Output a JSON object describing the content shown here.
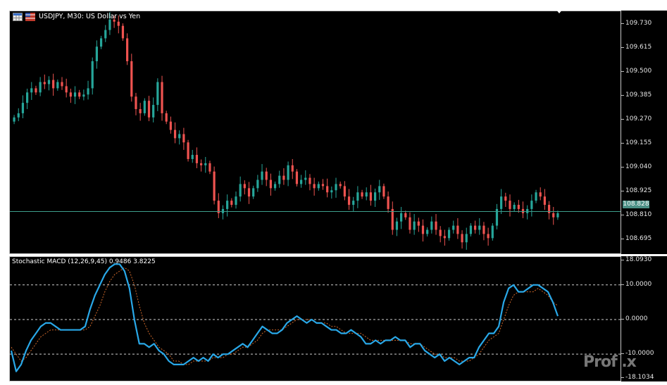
{
  "chart": {
    "title": "USDJPY, M30:  US Dollar vs Yen",
    "current_price": "108.828",
    "price_ticks": [
      "109.730",
      "109.615",
      "109.500",
      "109.385",
      "109.270",
      "109.155",
      "109.040",
      "108.925",
      "108.810",
      "108.695"
    ],
    "colors": {
      "bull": "#26a69a",
      "bear": "#ef5350",
      "background": "#000000",
      "price_line": "#3d9e8c"
    },
    "icons": [
      "table-icon",
      "flag-icon"
    ]
  },
  "indicator": {
    "title": "Stochastic MACD (12,26,9,45) 0.9486 3.8225",
    "ticks": [
      "18.0930",
      "10.0000",
      "0.0000",
      "-10.0000",
      "-18.1034"
    ],
    "levels": [
      10,
      0,
      -10
    ],
    "colors": {
      "main": "#29a8e8",
      "signal": "#d0682a",
      "level": "#cfcfcf"
    }
  },
  "watermark": "Prof .x",
  "chart_data": [
    {
      "type": "candlestick",
      "title": "USDJPY, M30:  US Dollar vs Yen",
      "ylim": [
        108.62,
        109.79
      ],
      "current_price": 108.828,
      "close": [
        109.28,
        109.3,
        109.35,
        109.4,
        109.42,
        109.4,
        109.45,
        109.44,
        109.46,
        109.42,
        109.45,
        109.43,
        109.4,
        109.38,
        109.4,
        109.38,
        109.39,
        109.42,
        109.55,
        109.62,
        109.66,
        109.7,
        109.75,
        109.74,
        109.72,
        109.66,
        109.55,
        109.38,
        109.32,
        109.3,
        109.36,
        109.28,
        109.34,
        109.45,
        109.3,
        109.26,
        109.22,
        109.18,
        109.2,
        109.16,
        109.08,
        109.1,
        109.06,
        109.05,
        109.06,
        109.02,
        108.88,
        108.82,
        108.84,
        108.88,
        108.86,
        108.9,
        108.96,
        108.94,
        108.9,
        108.94,
        108.98,
        109.02,
        108.98,
        108.94,
        108.96,
        109.0,
        108.98,
        109.05,
        109.02,
        108.96,
        108.98,
        108.99,
        108.96,
        108.94,
        108.96,
        108.95,
        108.92,
        108.93,
        108.96,
        108.95,
        108.9,
        108.86,
        108.88,
        108.92,
        108.9,
        108.92,
        108.88,
        108.92,
        108.95,
        108.9,
        108.84,
        108.74,
        108.78,
        108.82,
        108.8,
        108.74,
        108.78,
        108.76,
        108.72,
        108.74,
        108.78,
        108.74,
        108.71,
        108.7,
        108.74,
        108.76,
        108.72,
        108.68,
        108.72,
        108.76,
        108.74,
        108.76,
        108.72,
        108.7,
        108.76,
        108.84,
        108.9,
        108.88,
        108.84,
        108.86,
        108.84,
        108.82,
        108.84,
        108.88,
        108.92,
        108.9,
        108.86,
        108.82,
        108.8,
        108.82
      ]
    },
    {
      "type": "line",
      "title": "Stochastic MACD (12,26,9,45) 0.9486 3.8225",
      "ylim": [
        -18.1034,
        18.093
      ],
      "levels": [
        10,
        0,
        -10
      ],
      "series": [
        {
          "name": "main",
          "values": [
            -9,
            -15,
            -13,
            -9,
            -6,
            -4,
            -2,
            -1,
            -1,
            -2,
            -3,
            -3,
            -3,
            -3,
            -3,
            -2,
            3,
            7,
            10,
            13,
            15,
            16,
            16,
            14,
            9,
            0,
            -7,
            -7,
            -8,
            -7,
            -9,
            -10,
            -12,
            -13,
            -13,
            -13,
            -12,
            -11,
            -12,
            -11,
            -12,
            -10,
            -11,
            -10,
            -10,
            -9,
            -8,
            -7,
            -8,
            -6,
            -4,
            -2,
            -3,
            -4,
            -4,
            -3,
            -1,
            0,
            1,
            0,
            -1,
            0,
            -1,
            -1,
            -2,
            -3,
            -3,
            -4,
            -4,
            -3,
            -4,
            -5,
            -7,
            -7,
            -6,
            -7,
            -6,
            -6,
            -5,
            -6,
            -6,
            -8,
            -7,
            -7,
            -9,
            -10,
            -11,
            -10,
            -12,
            -11,
            -12,
            -13,
            -12,
            -11,
            -11,
            -8,
            -6,
            -4,
            -4,
            -2,
            5,
            9,
            10,
            8,
            8,
            9,
            10,
            10,
            9,
            8,
            5,
            1
          ]
        },
        {
          "name": "signal",
          "values": [
            -8,
            -10,
            -12,
            -11,
            -9,
            -7,
            -5,
            -4,
            -3,
            -3,
            -3,
            -3,
            -3,
            -3,
            -3,
            -3,
            -2,
            1,
            4,
            8,
            11,
            13,
            14,
            15,
            14,
            10,
            4,
            -1,
            -4,
            -6,
            -8,
            -9,
            -10,
            -12,
            -12,
            -13,
            -13,
            -12,
            -12,
            -12,
            -12,
            -11,
            -11,
            -11,
            -10,
            -10,
            -9,
            -8,
            -8,
            -7,
            -6,
            -4,
            -3,
            -3,
            -3,
            -3,
            -2,
            -1,
            0,
            0,
            0,
            0,
            -1,
            -1,
            -1,
            -2,
            -2,
            -3,
            -4,
            -4,
            -4,
            -4,
            -5,
            -6,
            -6,
            -6,
            -6,
            -6,
            -6,
            -6,
            -6,
            -7,
            -7,
            -7,
            -8,
            -9,
            -10,
            -10,
            -11,
            -11,
            -11,
            -12,
            -12,
            -12,
            -11,
            -10,
            -8,
            -6,
            -5,
            -4,
            0,
            4,
            7,
            8,
            8,
            8,
            8,
            9,
            8,
            7,
            5,
            4
          ]
        }
      ]
    }
  ]
}
